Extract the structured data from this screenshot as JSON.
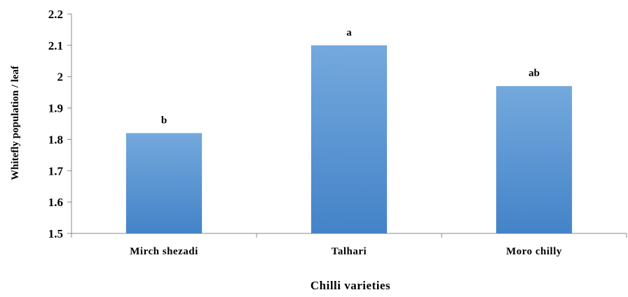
{
  "chart_data": {
    "type": "bar",
    "categories": [
      "Mirch shezadi",
      "Talhari",
      "Moro chilly"
    ],
    "values": [
      1.82,
      2.1,
      1.97
    ],
    "data_labels": [
      "b",
      "a",
      "ab"
    ],
    "title": "",
    "xlabel": "Chilli varieties",
    "ylabel": "Whitefly population / leaf",
    "ylim": [
      1.5,
      2.2
    ],
    "yticks": [
      1.5,
      1.6,
      1.7,
      1.8,
      1.9,
      2.0,
      2.1,
      2.2
    ],
    "ytick_labels": [
      "1.5",
      "1.6",
      "1.7",
      "1.8",
      "1.9",
      "2",
      "2.1",
      "2.2"
    ],
    "grid": false,
    "legend": "none",
    "bar_color_top": "#74a9dd",
    "bar_color_bottom": "#4483c8"
  }
}
